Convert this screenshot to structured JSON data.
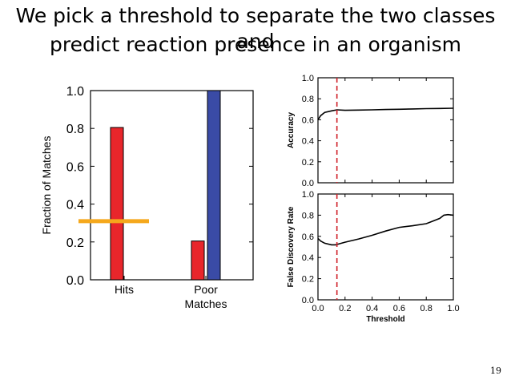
{
  "slide": {
    "title_line1": "We pick a threshold to separate the two classes and",
    "title_line2": "predict reaction presence in an organism",
    "page_number": "19"
  },
  "chart_data": [
    {
      "type": "bar",
      "categories": [
        "Hits",
        "Poor\nMatches"
      ],
      "series": [
        {
          "color": "#e8262b",
          "values": [
            0.805,
            0.205
          ]
        },
        {
          "color": "#3a4ba6",
          "values": [
            null,
            1.0
          ]
        }
      ],
      "threshold_marker": {
        "value": 0.31,
        "color": "#f5a81c"
      },
      "ylabel": "Fraction of Matches",
      "xlabel": "",
      "ylim": [
        0,
        1.0
      ],
      "yticks": [
        "0.0",
        "0.2",
        "0.4",
        "0.6",
        "0.8",
        "1.0"
      ],
      "grid": false
    },
    {
      "type": "line",
      "ylabel": "Accuracy",
      "xlim": [
        0,
        1.0
      ],
      "ylim": [
        0,
        1.0
      ],
      "yticks": [
        "0.0",
        "0.2",
        "0.4",
        "0.6",
        "0.8",
        "1.0"
      ],
      "x": [
        0.0,
        0.02,
        0.05,
        0.1,
        0.14,
        0.2,
        0.3,
        0.4,
        0.5,
        0.6,
        0.7,
        0.8,
        0.9,
        1.0
      ],
      "y": [
        0.6,
        0.64,
        0.67,
        0.685,
        0.695,
        0.69,
        0.692,
        0.695,
        0.698,
        0.7,
        0.703,
        0.706,
        0.708,
        0.71
      ],
      "threshold": 0.14,
      "line_color": "#000000",
      "threshold_color": "#d0202a"
    },
    {
      "type": "line",
      "ylabel": "False Discovery Rate",
      "xlabel": "Threshold",
      "xlim": [
        0,
        1.0
      ],
      "ylim": [
        0,
        1.0
      ],
      "xticks": [
        "0.0",
        "0.2",
        "0.4",
        "0.6",
        "0.8",
        "1.0"
      ],
      "yticks": [
        "0.0",
        "0.2",
        "0.4",
        "0.6",
        "0.8",
        "1.0"
      ],
      "x": [
        0.0,
        0.02,
        0.05,
        0.1,
        0.13,
        0.16,
        0.2,
        0.3,
        0.4,
        0.5,
        0.6,
        0.7,
        0.8,
        0.85,
        0.9,
        0.93,
        0.96,
        1.0
      ],
      "y": [
        0.58,
        0.555,
        0.535,
        0.52,
        0.52,
        0.53,
        0.545,
        0.575,
        0.61,
        0.65,
        0.685,
        0.7,
        0.72,
        0.745,
        0.77,
        0.8,
        0.805,
        0.8
      ],
      "threshold": 0.14,
      "line_color": "#000000",
      "threshold_color": "#d0202a"
    }
  ]
}
